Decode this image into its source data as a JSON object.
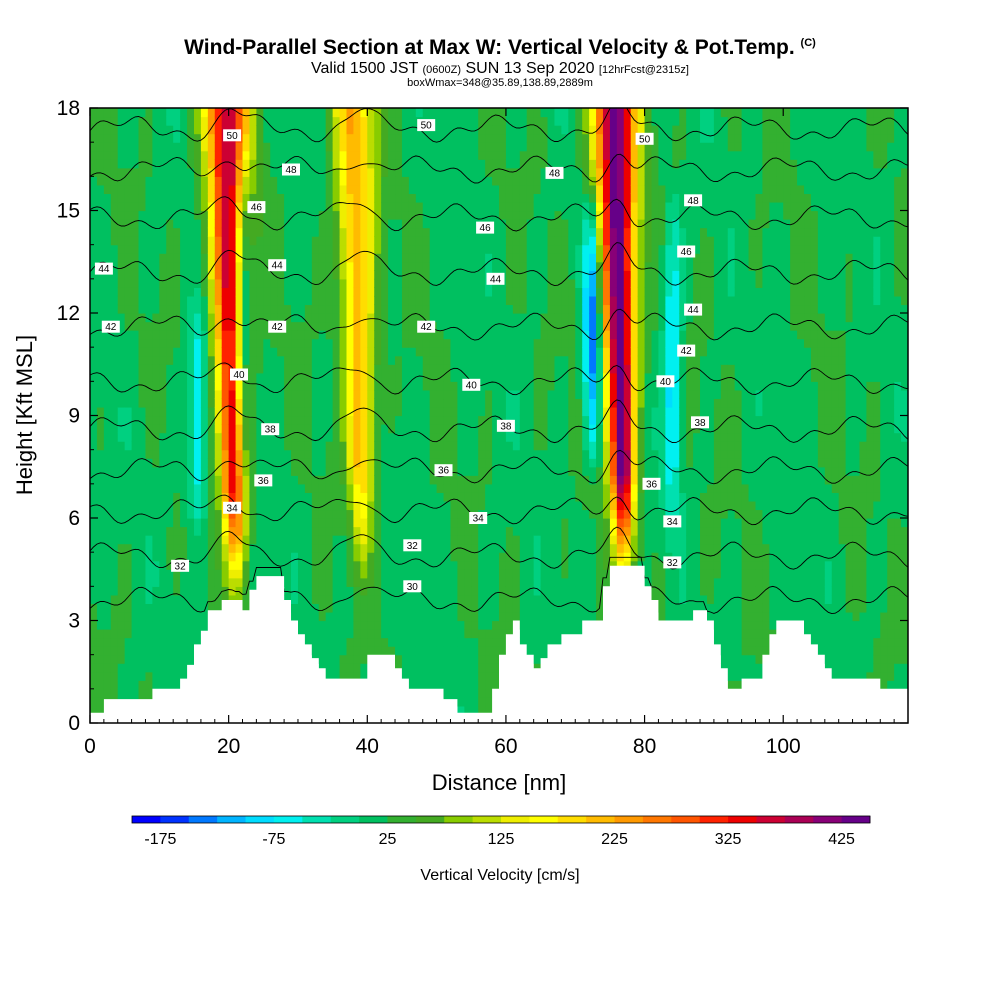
{
  "header": {
    "title": "Wind-Parallel Section at Max W: Vertical Velocity & Pot.Temp.",
    "title_corner": "(C)",
    "subtitle_a": "Valid 1500 JST",
    "subtitle_b": "(0600Z)",
    "subtitle_c": "SUN 13 Sep 2020",
    "subtitle_d": "[12hrFcst@2315z]",
    "subtitle2": "boxWmax=348@35.89,138.89,2889m"
  },
  "chart_data": {
    "type": "heatmap",
    "title": "Wind-Parallel Section at Max W: Vertical Velocity & Pot.Temp.",
    "xlabel": "Distance [nm]",
    "ylabel": "Height [Kft MSL]",
    "xlim": [
      0,
      118
    ],
    "ylim": [
      0,
      18
    ],
    "x_ticks": [
      0,
      20,
      40,
      60,
      80,
      100
    ],
    "y_ticks": [
      0,
      3,
      6,
      9,
      12,
      15,
      18
    ],
    "colorbar": {
      "title": "Vertical Velocity [cm/s]",
      "tick_labels": [
        "-175",
        "-75",
        "25",
        "125",
        "225",
        "325",
        "425"
      ],
      "boundaries": [
        -200,
        -175,
        -150,
        -125,
        -100,
        -75,
        -50,
        -25,
        0,
        25,
        50,
        75,
        100,
        125,
        150,
        175,
        200,
        225,
        250,
        275,
        300,
        325,
        350,
        375,
        400,
        425,
        450
      ],
      "colors": [
        "#0000ff",
        "#0032ff",
        "#0078ff",
        "#00b4ff",
        "#00dcff",
        "#00f0f0",
        "#00e0b0",
        "#00d080",
        "#00c060",
        "#33b030",
        "#44aa22",
        "#88cc00",
        "#bbdd00",
        "#eeee00",
        "#ffff00",
        "#ffdd00",
        "#ffbb00",
        "#ff9900",
        "#ff7700",
        "#ff5500",
        "#ff2200",
        "#ee0000",
        "#cc0033",
        "#aa0055",
        "#880077",
        "#660088"
      ]
    },
    "updrafts": [
      {
        "center_x": 20.5,
        "peak": 380,
        "base_height": 4.5,
        "top_height": 18
      },
      {
        "center_x": 38.8,
        "peak": 220,
        "base_height": 5.0,
        "top_height": 18
      },
      {
        "center_x": 76.5,
        "peak": 440,
        "base_height": 4.8,
        "top_height": 18
      }
    ],
    "downdrafts": [
      {
        "center_x": 22.0,
        "peak": -160,
        "base_height": 7,
        "top_height": 16
      },
      {
        "center_x": 15.5,
        "peak": -90,
        "base_height": 6,
        "top_height": 12
      },
      {
        "center_x": 72.5,
        "peak": -160,
        "base_height": 8,
        "top_height": 15
      },
      {
        "center_x": 84.0,
        "peak": -90,
        "base_height": 6,
        "top_height": 15
      }
    ],
    "terrain": [
      {
        "x": 0,
        "y": 0.3
      },
      {
        "x": 2,
        "y": 0.7
      },
      {
        "x": 8,
        "y": 0.7
      },
      {
        "x": 9,
        "y": 1.0
      },
      {
        "x": 12,
        "y": 1.0
      },
      {
        "x": 13,
        "y": 1.3
      },
      {
        "x": 14,
        "y": 1.7
      },
      {
        "x": 15,
        "y": 2.3
      },
      {
        "x": 16,
        "y": 2.7
      },
      {
        "x": 17,
        "y": 3.3
      },
      {
        "x": 19,
        "y": 3.6
      },
      {
        "x": 21,
        "y": 3.6
      },
      {
        "x": 22,
        "y": 3.3
      },
      {
        "x": 23,
        "y": 3.9
      },
      {
        "x": 24,
        "y": 4.3
      },
      {
        "x": 27,
        "y": 4.3
      },
      {
        "x": 28,
        "y": 3.6
      },
      {
        "x": 29,
        "y": 3.0
      },
      {
        "x": 30,
        "y": 2.6
      },
      {
        "x": 31,
        "y": 2.3
      },
      {
        "x": 32,
        "y": 1.9
      },
      {
        "x": 33,
        "y": 1.6
      },
      {
        "x": 34,
        "y": 1.3
      },
      {
        "x": 38,
        "y": 1.3
      },
      {
        "x": 40,
        "y": 2.0
      },
      {
        "x": 43,
        "y": 2.0
      },
      {
        "x": 44,
        "y": 1.6
      },
      {
        "x": 45,
        "y": 1.3
      },
      {
        "x": 46,
        "y": 1.0
      },
      {
        "x": 50,
        "y": 1.0
      },
      {
        "x": 51,
        "y": 0.7
      },
      {
        "x": 52,
        "y": 0.7
      },
      {
        "x": 53,
        "y": 0.3
      },
      {
        "x": 57,
        "y": 0.3
      },
      {
        "x": 58,
        "y": 1.0
      },
      {
        "x": 59,
        "y": 2.0
      },
      {
        "x": 60,
        "y": 2.6
      },
      {
        "x": 61,
        "y": 3.0
      },
      {
        "x": 62,
        "y": 2.3
      },
      {
        "x": 63,
        "y": 2.0
      },
      {
        "x": 64,
        "y": 1.6
      },
      {
        "x": 65,
        "y": 1.9
      },
      {
        "x": 66,
        "y": 2.3
      },
      {
        "x": 68,
        "y": 2.6
      },
      {
        "x": 70,
        "y": 2.6
      },
      {
        "x": 71,
        "y": 3.0
      },
      {
        "x": 73,
        "y": 3.0
      },
      {
        "x": 74,
        "y": 4.0
      },
      {
        "x": 75,
        "y": 4.6
      },
      {
        "x": 79,
        "y": 4.6
      },
      {
        "x": 80,
        "y": 4.0
      },
      {
        "x": 81,
        "y": 3.6
      },
      {
        "x": 82,
        "y": 3.0
      },
      {
        "x": 86,
        "y": 3.0
      },
      {
        "x": 87,
        "y": 3.3
      },
      {
        "x": 88,
        "y": 3.3
      },
      {
        "x": 89,
        "y": 3.0
      },
      {
        "x": 90,
        "y": 2.3
      },
      {
        "x": 91,
        "y": 1.6
      },
      {
        "x": 92,
        "y": 1.0
      },
      {
        "x": 94,
        "y": 1.3
      },
      {
        "x": 96,
        "y": 1.3
      },
      {
        "x": 97,
        "y": 2.0
      },
      {
        "x": 98,
        "y": 2.6
      },
      {
        "x": 99,
        "y": 3.0
      },
      {
        "x": 102,
        "y": 3.0
      },
      {
        "x": 103,
        "y": 2.6
      },
      {
        "x": 104,
        "y": 2.3
      },
      {
        "x": 105,
        "y": 2.0
      },
      {
        "x": 106,
        "y": 1.6
      },
      {
        "x": 107,
        "y": 1.3
      },
      {
        "x": 112,
        "y": 1.3
      },
      {
        "x": 114,
        "y": 1.0
      },
      {
        "x": 116,
        "y": 1.0
      },
      {
        "x": 118,
        "y": 1.0
      }
    ],
    "theta_contours": [
      {
        "value": 30,
        "height": 3.6
      },
      {
        "value": 32,
        "height": 4.9
      },
      {
        "value": 34,
        "height": 6.2
      },
      {
        "value": 36,
        "height": 7.4
      },
      {
        "value": 38,
        "height": 8.6
      },
      {
        "value": 40,
        "height": 10.0
      },
      {
        "value": 42,
        "height": 11.6
      },
      {
        "value": 44,
        "height": 13.2
      },
      {
        "value": 46,
        "height": 14.8
      },
      {
        "value": 48,
        "height": 16.2
      },
      {
        "value": 50,
        "height": 17.4
      }
    ],
    "contour_labels": [
      {
        "text": "50",
        "x": 20.5,
        "y": 17.2
      },
      {
        "text": "50",
        "x": 48.5,
        "y": 17.5
      },
      {
        "text": "50",
        "x": 80.0,
        "y": 17.1
      },
      {
        "text": "48",
        "x": 29.0,
        "y": 16.2
      },
      {
        "text": "48",
        "x": 67.0,
        "y": 16.1
      },
      {
        "text": "48",
        "x": 87.0,
        "y": 15.3
      },
      {
        "text": "46",
        "x": 24.0,
        "y": 15.1
      },
      {
        "text": "46",
        "x": 57.0,
        "y": 14.5
      },
      {
        "text": "46",
        "x": 86.0,
        "y": 13.8
      },
      {
        "text": "44",
        "x": 2.0,
        "y": 13.3
      },
      {
        "text": "44",
        "x": 27.0,
        "y": 13.4
      },
      {
        "text": "44",
        "x": 58.5,
        "y": 13.0
      },
      {
        "text": "44",
        "x": 87.0,
        "y": 12.1
      },
      {
        "text": "42",
        "x": 3.0,
        "y": 11.6
      },
      {
        "text": "42",
        "x": 27.0,
        "y": 11.6
      },
      {
        "text": "42",
        "x": 48.5,
        "y": 11.6
      },
      {
        "text": "42",
        "x": 86.0,
        "y": 10.9
      },
      {
        "text": "40",
        "x": 21.5,
        "y": 10.2
      },
      {
        "text": "40",
        "x": 55.0,
        "y": 9.9
      },
      {
        "text": "40",
        "x": 83.0,
        "y": 10.0
      },
      {
        "text": "38",
        "x": 26.0,
        "y": 8.6
      },
      {
        "text": "38",
        "x": 60.0,
        "y": 8.7
      },
      {
        "text": "38",
        "x": 88.0,
        "y": 8.8
      },
      {
        "text": "36",
        "x": 25.0,
        "y": 7.1
      },
      {
        "text": "36",
        "x": 51.0,
        "y": 7.4
      },
      {
        "text": "36",
        "x": 81.0,
        "y": 7.0
      },
      {
        "text": "34",
        "x": 20.5,
        "y": 6.3
      },
      {
        "text": "34",
        "x": 56.0,
        "y": 6.0
      },
      {
        "text": "34",
        "x": 84.0,
        "y": 5.9
      },
      {
        "text": "32",
        "x": 13.0,
        "y": 4.6
      },
      {
        "text": "32",
        "x": 46.5,
        "y": 5.2
      },
      {
        "text": "32",
        "x": 84.0,
        "y": 4.7
      },
      {
        "text": "30",
        "x": 46.5,
        "y": 4.0
      }
    ]
  }
}
